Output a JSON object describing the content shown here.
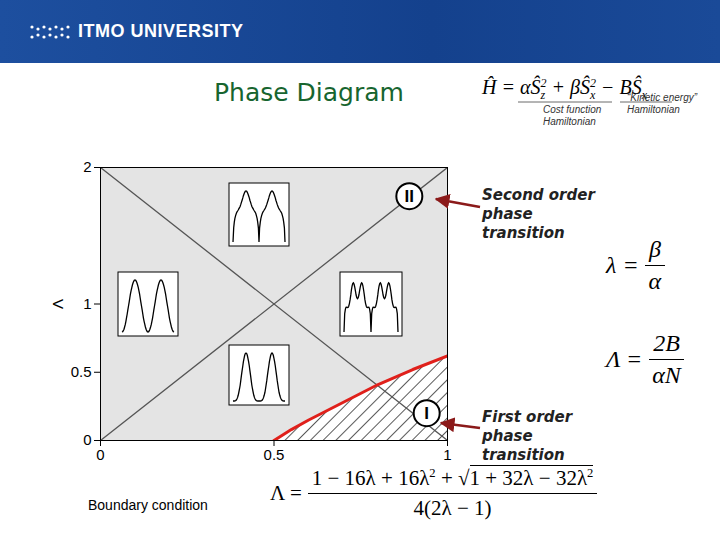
{
  "chart_data": {
    "type": "line",
    "title": "Phase Diagram",
    "y_label": "Λ",
    "xlim": [
      0,
      1
    ],
    "ylim": [
      0,
      2
    ],
    "xticks": [
      0,
      0.5,
      1
    ],
    "yticks": [
      0,
      0.5,
      1,
      2
    ],
    "series": [
      {
        "color": "#555555",
        "x": [
          0,
          1
        ],
        "values": [
          2,
          0
        ]
      },
      {
        "color": "#555555",
        "x": [
          0,
          1
        ],
        "values": [
          0,
          2
        ]
      },
      {
        "color": "#e0201b",
        "type": "area",
        "x": [
          0.5,
          0.55,
          0.6,
          0.7,
          0.8,
          0.9,
          1
        ],
        "values": [
          0,
          0.08,
          0.15,
          0.28,
          0.41,
          0.52,
          0.62
        ]
      }
    ],
    "annotations": [
      {
        "text": "II",
        "x": 0.89,
        "y": 1.79
      },
      {
        "text": "I",
        "x": 0.94,
        "y": 0.2
      }
    ]
  },
  "slide": {
    "header": "ITMO UNIVERSITY",
    "hamiltonian": [
      "Ĥ = α",
      "Ŝ",
      {
        "sub": "z",
        "sup": "2"
      },
      " + β",
      "Ŝ",
      {
        "sub": "x",
        "sup": "2"
      },
      " − B",
      "Ŝ",
      {
        "sub": "x"
      }
    ],
    "cost_label": "Cost function Hamiltonian",
    "kinetic_label": "“Kinetic energy” Hamiltonian",
    "second_order": "Second order phase transition",
    "first_order": "First order phase transition",
    "lambda_def": {
      "lhs": "λ =",
      "num": [
        "β"
      ],
      "den": [
        "α"
      ]
    },
    "Lambda_def": {
      "lhs": "Λ =",
      "num": [
        "2B"
      ],
      "den": [
        "αN"
      ]
    },
    "boundary_label": "Boundary condition",
    "boundary": {
      "lhs": "Λ =",
      "num": [
        "1 − 16λ + 16λ",
        {
          "sup": "2"
        },
        " + ",
        {
          "root": "√",
          "sqrt": [
            "1 + 32λ − 32λ",
            {
              "sup": "2"
            }
          ]
        }
      ],
      "den": [
        "4(2λ − 1)"
      ]
    }
  }
}
